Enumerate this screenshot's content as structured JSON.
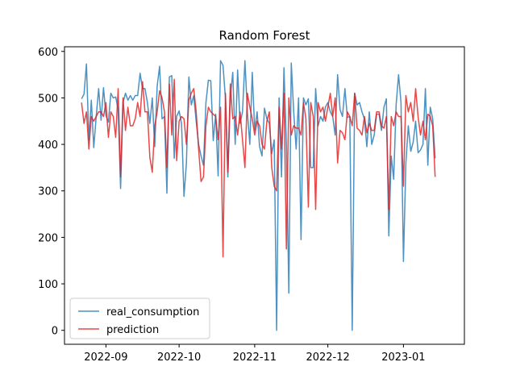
{
  "chart_data": {
    "type": "line",
    "title": "Random Forest",
    "xlabel": "",
    "ylabel": "",
    "x_start": "2022-08-22",
    "x_end": "2023-01-19",
    "xlim": [
      "2022-08-15",
      "2023-01-26"
    ],
    "ylim": [
      -30,
      610
    ],
    "x_ticks": [
      {
        "label": "2022-09",
        "date": "2022-09-01"
      },
      {
        "label": "2022-10",
        "date": "2022-10-01"
      },
      {
        "label": "2022-11",
        "date": "2022-11-01"
      },
      {
        "label": "2022-12",
        "date": "2022-12-01"
      },
      {
        "label": "2023-01",
        "date": "2023-01-01"
      }
    ],
    "y_ticks": [
      {
        "label": "0",
        "value": 0
      },
      {
        "label": "100",
        "value": 100
      },
      {
        "label": "200",
        "value": 200
      },
      {
        "label": "300",
        "value": 300
      },
      {
        "label": "400",
        "value": 400
      },
      {
        "label": "500",
        "value": 500
      },
      {
        "label": "600",
        "value": 600
      }
    ],
    "grid": false,
    "legend": "lower-left",
    "series": [
      {
        "name": "real_consumption",
        "color": "#1f77b4",
        "opacity": 0.8,
        "values": [
          498,
          508,
          573,
          410,
          495,
          393,
          460,
          520,
          452,
          522,
          462,
          448,
          510,
          500,
          502,
          475,
          305,
          490,
          510,
          495,
          505,
          495,
          505,
          505,
          553,
          520,
          520,
          490,
          445,
          500,
          395,
          525,
          568,
          455,
          460,
          295,
          545,
          548,
          370,
          460,
          472,
          445,
          288,
          360,
          545,
          485,
          505,
          450,
          400,
          375,
          355,
          490,
          538,
          537,
          408,
          465,
          332,
          580,
          570,
          500,
          330,
          500,
          555,
          400,
          560,
          445,
          470,
          580,
          470,
          400,
          555,
          430,
          470,
          395,
          375,
          478,
          455,
          445,
          380,
          410,
          0,
          500,
          330,
          565,
          400,
          80,
          575,
          470,
          390,
          500,
          195,
          500,
          485,
          498,
          350,
          350,
          520,
          440,
          460,
          450,
          480,
          490,
          470,
          460,
          420,
          550,
          475,
          460,
          520,
          458,
          460,
          0,
          510,
          485,
          490,
          470,
          455,
          395,
          470,
          400,
          420,
          465,
          465,
          430,
          480,
          498,
          203,
          375,
          325,
          485,
          550,
          490,
          148,
          360,
          440,
          385,
          405,
          450,
          382,
          388,
          400,
          520,
          355,
          480,
          455,
          370
        ]
      },
      {
        "name": "prediction",
        "color": "#e41a1c",
        "opacity": 0.8,
        "values": [
          490,
          445,
          470,
          390,
          460,
          450,
          460,
          470,
          470,
          460,
          490,
          415,
          470,
          460,
          415,
          520,
          330,
          500,
          430,
          480,
          440,
          440,
          455,
          490,
          460,
          535,
          470,
          470,
          372,
          340,
          440,
          470,
          515,
          500,
          470,
          350,
          530,
          420,
          540,
          365,
          450,
          460,
          455,
          400,
          495,
          510,
          520,
          470,
          390,
          320,
          330,
          440,
          480,
          470,
          465,
          460,
          410,
          480,
          158,
          510,
          340,
          530,
          455,
          460,
          420,
          470,
          410,
          350,
          510,
          480,
          455,
          420,
          450,
          440,
          400,
          390,
          450,
          470,
          350,
          310,
          300,
          480,
          390,
          510,
          175,
          500,
          420,
          440,
          435,
          435,
          420,
          490,
          455,
          265,
          490,
          460,
          260,
          490,
          470,
          480,
          450,
          480,
          510,
          460,
          500,
          360,
          430,
          425,
          410,
          470,
          460,
          440,
          510,
          435,
          430,
          420,
          460,
          425,
          445,
          430,
          430,
          470,
          470,
          440,
          435,
          460,
          260,
          460,
          440,
          470,
          460,
          460,
          310,
          505,
          470,
          490,
          450,
          520,
          460,
          420,
          450,
          410,
          465,
          460,
          440,
          330
        ]
      }
    ]
  }
}
